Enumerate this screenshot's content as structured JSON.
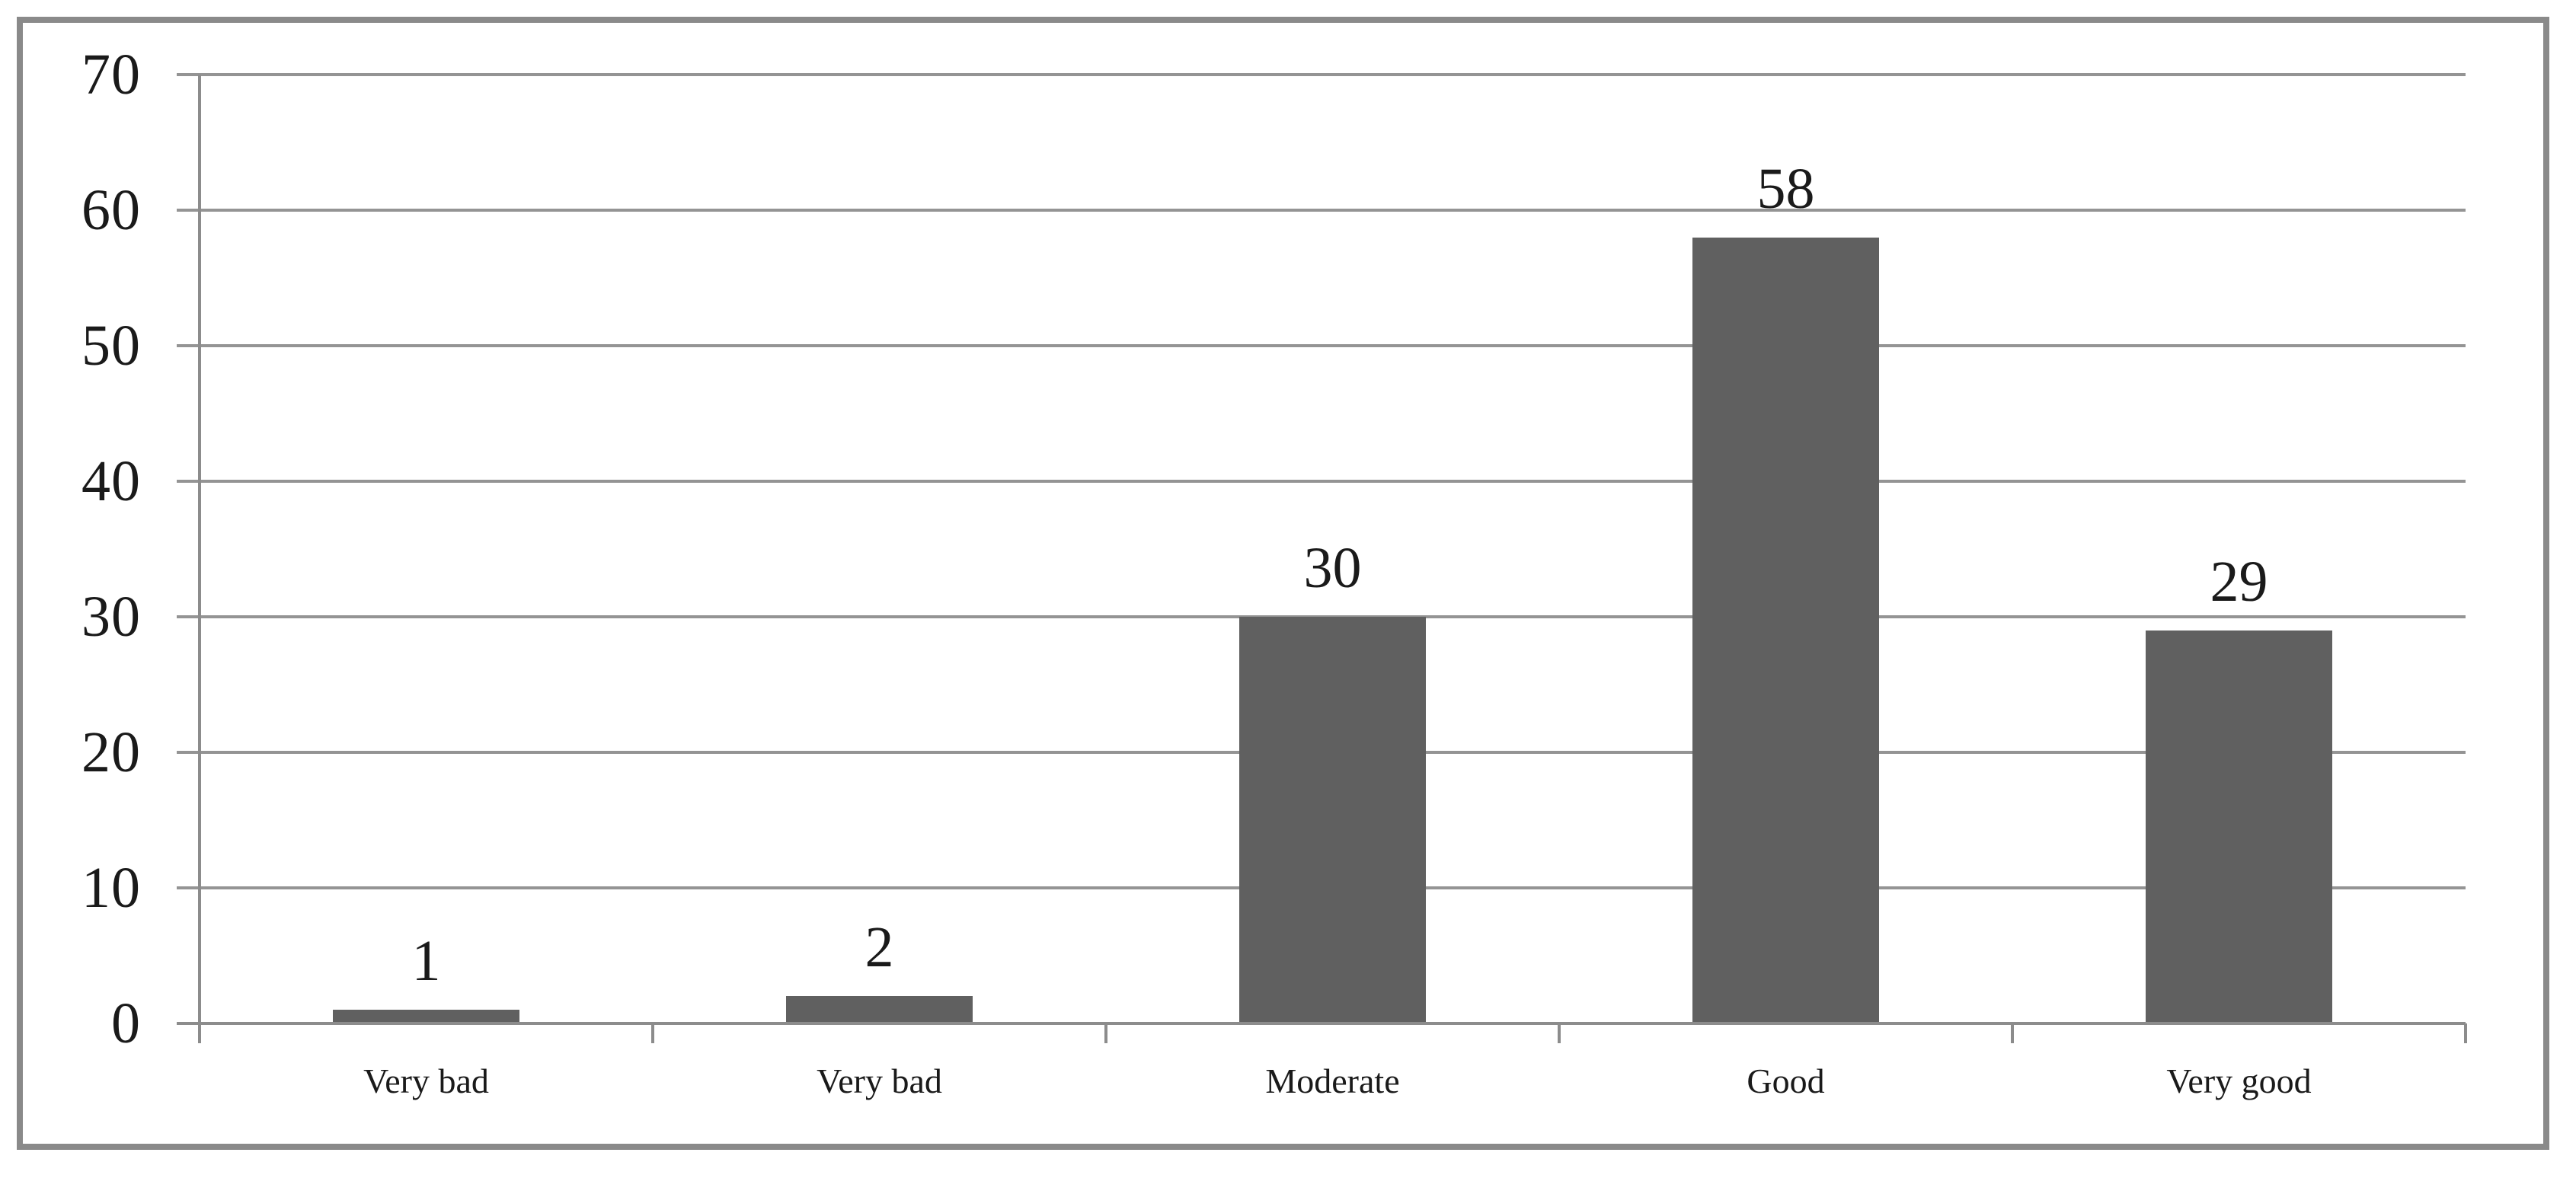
{
  "chart_data": {
    "type": "bar",
    "title": "",
    "xlabel": "",
    "ylabel": "",
    "categories": [
      "Very bad",
      "Very bad",
      "Moderate",
      "Good",
      "Very good"
    ],
    "values": [
      1,
      2,
      30,
      58,
      29
    ],
    "data_labels": [
      "1",
      "2",
      "30",
      "58",
      "29"
    ],
    "ylim": [
      0,
      70
    ],
    "ytick_step": 10,
    "yticks": [
      0,
      10,
      20,
      30,
      40,
      50,
      60,
      70
    ],
    "grid": "horizontal",
    "legend": "none",
    "colors": {
      "bar_fill": "#606060",
      "gridline": "#949494",
      "axis": "#8c8c8c",
      "frame_border": "#8a8a8a",
      "text": "#1a1a1a",
      "background": "#ffffff"
    }
  }
}
